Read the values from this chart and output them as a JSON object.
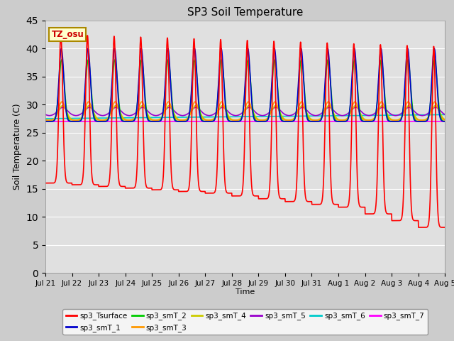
{
  "title": "SP3 Soil Temperature",
  "ylabel": "Soil Temperature (C)",
  "xlabel": "Time",
  "annotation": "TZ_osu",
  "ylim": [
    0,
    45
  ],
  "yticks": [
    0,
    5,
    10,
    15,
    20,
    25,
    30,
    35,
    40,
    45
  ],
  "series_colors": {
    "sp3_Tsurface": "#ff0000",
    "sp3_smT_1": "#0000cc",
    "sp3_smT_2": "#00cc00",
    "sp3_smT_3": "#ff9900",
    "sp3_smT_4": "#cccc00",
    "sp3_smT_5": "#9900cc",
    "sp3_smT_6": "#00cccc",
    "sp3_smT_7": "#ff00ff"
  },
  "n_days": 15,
  "day_labels": [
    "Jul 21",
    "Jul 22",
    "Jul 23",
    "Jul 24",
    "Jul 25",
    "Jul 26",
    "Jul 27",
    "Jul 28",
    "Jul 29",
    "Jul 30",
    "Jul 31",
    "Aug 1",
    "Aug 2",
    "Aug 3",
    "Aug 4",
    "Aug 5"
  ]
}
